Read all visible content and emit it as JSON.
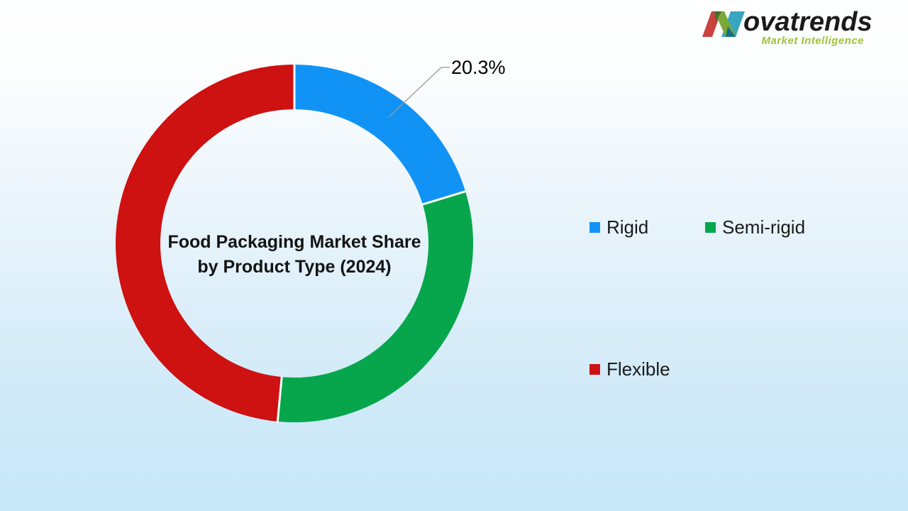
{
  "background": {
    "gradient_top": "#ffffff",
    "gradient_bottom": "#c5e7f8"
  },
  "brand": {
    "name": "Novatrends",
    "name_rest": "ovatrends",
    "tagline": "Market Intelligence",
    "colors": {
      "mark_red": "#C8423E",
      "mark_green": "#7CA838",
      "mark_teal": "#38A6BE",
      "mark_overlap_dark_green": "#476E2D",
      "mark_overlap_dark_teal": "#17707F",
      "wordmark": "#1B1B1B",
      "tagline": "#9EC33C"
    }
  },
  "chart_data": {
    "type": "pie",
    "subtype": "donut",
    "title": "Food Packaging Market Share by Product Type (2024)",
    "title_line1": "Food Packaging Market Share",
    "title_line2": "by Product Type (2024)",
    "categories": [
      "Rigid",
      "Semi-rigid",
      "Flexible"
    ],
    "values": [
      20.3,
      31.2,
      48.5
    ],
    "colors": [
      "#1193F5",
      "#07A64C",
      "#CE1111"
    ],
    "hole_ratio": 0.75,
    "start_angle_deg": 0,
    "direction": "clockwise",
    "data_label": {
      "text": "20.3%",
      "segment": "Rigid"
    },
    "legend": {
      "position": "right",
      "items": [
        {
          "label": "Rigid",
          "color": "#1193F5"
        },
        {
          "label": "Semi-rigid",
          "color": "#07A64C"
        },
        {
          "label": "Flexible",
          "color": "#CE1111"
        }
      ]
    }
  }
}
